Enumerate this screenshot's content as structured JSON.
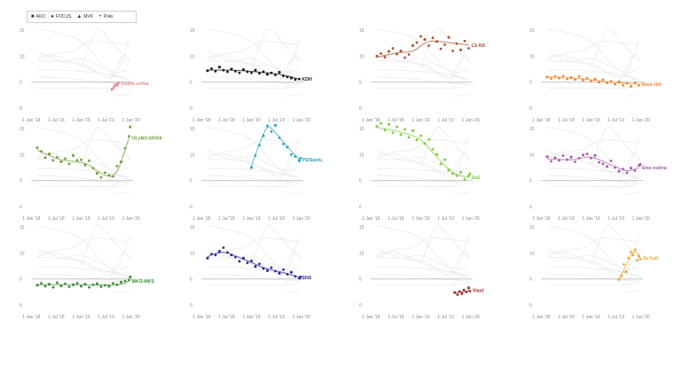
{
  "legend": {
    "items": [
      {
        "label": "AKO",
        "symbol": "■"
      },
      {
        "label": "FOCUS",
        "symbol": "●"
      },
      {
        "label": "MVK",
        "symbol": "▲"
      },
      {
        "label": "Polis",
        "symbol": "+"
      }
    ]
  },
  "chart_data": {
    "type": "scatter",
    "x_ticks": [
      "1 Jan '18",
      "1 Jul '18",
      "1 Jan '19",
      "1 Jul '19",
      "1 Jan '20"
    ],
    "y_ticks": [
      0,
      5,
      10,
      15
    ],
    "ylim": [
      -1,
      16
    ],
    "xlim": [
      0,
      26
    ],
    "threshold": 5,
    "panels": [
      {
        "label": "Dobrá voľba",
        "color": "#e08f93",
        "points": [
          [
            20.7,
            3.6
          ],
          [
            21.1,
            3.9
          ],
          [
            21.4,
            4.3
          ],
          [
            21.8,
            4.6
          ],
          [
            22.1,
            4.4
          ],
          [
            22.4,
            4.9
          ]
        ],
        "trend": [
          [
            20.7,
            3.6
          ],
          [
            22.4,
            4.8
          ]
        ]
      },
      {
        "label": "KDH",
        "color": "#1a1a1a",
        "points": [
          [
            2,
            7.2
          ],
          [
            3,
            7.6
          ],
          [
            4,
            7.1
          ],
          [
            5,
            7.9
          ],
          [
            6,
            7.3
          ],
          [
            7,
            7.0
          ],
          [
            8,
            7.5
          ],
          [
            9,
            7.1
          ],
          [
            10,
            6.8
          ],
          [
            11,
            7.4
          ],
          [
            12,
            7.0
          ],
          [
            13,
            6.8
          ],
          [
            14,
            7.3
          ],
          [
            15,
            6.7
          ],
          [
            16,
            7.0
          ],
          [
            17,
            6.5
          ],
          [
            18,
            6.8
          ],
          [
            19,
            6.4
          ],
          [
            20,
            6.9
          ],
          [
            21,
            6.2
          ],
          [
            22,
            6.0
          ],
          [
            23,
            5.8
          ],
          [
            24,
            5.5
          ],
          [
            25,
            5.6
          ]
        ],
        "trend": [
          [
            2,
            7.3
          ],
          [
            8,
            7.3
          ],
          [
            14,
            7.0
          ],
          [
            20,
            6.5
          ],
          [
            25,
            5.6
          ]
        ]
      },
      {
        "label": "ĽS-NS",
        "color": "#a8552a",
        "points": [
          [
            2,
            10.0
          ],
          [
            3,
            10.5
          ],
          [
            4,
            9.8
          ],
          [
            5,
            10.9
          ],
          [
            6,
            11.5
          ],
          [
            7,
            10.4
          ],
          [
            8,
            11.0
          ],
          [
            9,
            9.7
          ],
          [
            10,
            10.3
          ],
          [
            11,
            12.0
          ],
          [
            12,
            12.6
          ],
          [
            13,
            13.8
          ],
          [
            14,
            13.2
          ],
          [
            15,
            12.0
          ],
          [
            16,
            13.5
          ],
          [
            17,
            12.8
          ],
          [
            18,
            11.4
          ],
          [
            19,
            12.2
          ],
          [
            20,
            13.6
          ],
          [
            21,
            11.0
          ],
          [
            22,
            12.4
          ],
          [
            23,
            11.2
          ],
          [
            24,
            12.9
          ],
          [
            25,
            11.5
          ]
        ],
        "trend": [
          [
            2,
            9.8
          ],
          [
            7,
            10.6
          ],
          [
            11,
            11.0
          ],
          [
            15,
            12.8
          ],
          [
            20,
            12.6
          ],
          [
            25,
            12.1
          ]
        ]
      },
      {
        "label": "Most-Híd",
        "color": "#ef8a33",
        "points": [
          [
            2,
            6.0
          ],
          [
            3,
            5.7
          ],
          [
            4,
            6.1
          ],
          [
            5,
            5.8
          ],
          [
            6,
            6.2
          ],
          [
            7,
            5.6
          ],
          [
            8,
            5.9
          ],
          [
            9,
            5.5
          ],
          [
            10,
            6.1
          ],
          [
            11,
            5.4
          ],
          [
            12,
            5.8
          ],
          [
            13,
            5.2
          ],
          [
            14,
            5.6
          ],
          [
            15,
            5.0
          ],
          [
            16,
            5.5
          ],
          [
            17,
            4.9
          ],
          [
            18,
            5.2
          ],
          [
            19,
            4.6
          ],
          [
            20,
            5.1
          ],
          [
            21,
            4.4
          ],
          [
            22,
            4.8
          ],
          [
            23,
            4.2
          ],
          [
            24,
            4.9
          ],
          [
            25,
            4.4
          ]
        ],
        "trend": [
          [
            2,
            6.0
          ],
          [
            10,
            5.7
          ],
          [
            18,
            5.0
          ],
          [
            25,
            4.6
          ]
        ]
      },
      {
        "label": "OĽaNO-NOVA",
        "color": "#6fa03a",
        "points": [
          [
            2,
            11.3
          ],
          [
            3,
            10.6
          ],
          [
            4,
            9.4
          ],
          [
            5,
            10.1
          ],
          [
            6,
            8.9
          ],
          [
            7,
            9.5
          ],
          [
            8,
            8.6
          ],
          [
            9,
            9.2
          ],
          [
            10,
            8.2
          ],
          [
            11,
            9.8
          ],
          [
            12,
            8.9
          ],
          [
            13,
            9.0
          ],
          [
            14,
            8.0
          ],
          [
            15,
            8.8
          ],
          [
            16,
            7.4
          ],
          [
            17,
            6.4
          ],
          [
            18,
            5.6
          ],
          [
            19,
            6.5
          ],
          [
            20,
            6.0
          ],
          [
            21,
            5.8
          ],
          [
            22,
            7.8
          ],
          [
            23,
            8.6
          ],
          [
            24,
            11.2
          ],
          [
            25,
            13.5
          ],
          [
            25.3,
            15.3
          ]
        ],
        "trend": [
          [
            2,
            10.8
          ],
          [
            8,
            9.0
          ],
          [
            14,
            8.3
          ],
          [
            19,
            6.0
          ],
          [
            22,
            6.8
          ],
          [
            25,
            13.2
          ]
        ]
      },
      {
        "label": "PS/Spolu",
        "color": "#2aa3b6",
        "points": [
          [
            13,
            7.5
          ],
          [
            14,
            9.8
          ],
          [
            15,
            11.8
          ],
          [
            16,
            13.6
          ],
          [
            17,
            15.5
          ],
          [
            18,
            14.4
          ],
          [
            19,
            15.6
          ],
          [
            20,
            13.2
          ],
          [
            21,
            12.0
          ],
          [
            22,
            11.4
          ],
          [
            23,
            10.0
          ],
          [
            24,
            9.6
          ],
          [
            25,
            8.8
          ],
          [
            25.3,
            9.3
          ]
        ],
        "trend": [
          [
            13,
            7.8
          ],
          [
            15,
            12.0
          ],
          [
            17,
            15.2
          ],
          [
            19,
            14.2
          ],
          [
            22,
            11.5
          ],
          [
            25,
            9.0
          ]
        ]
      },
      {
        "label": "SaS",
        "color": "#7dcc3a",
        "points": [
          [
            2,
            15.4
          ],
          [
            3,
            16.0
          ],
          [
            4,
            14.7
          ],
          [
            5,
            15.8
          ],
          [
            6,
            14.2
          ],
          [
            7,
            15.3
          ],
          [
            8,
            13.8
          ],
          [
            9,
            14.8
          ],
          [
            10,
            13.3
          ],
          [
            11,
            14.6
          ],
          [
            12,
            12.8
          ],
          [
            13,
            13.6
          ],
          [
            14,
            12.1
          ],
          [
            15,
            12.9
          ],
          [
            16,
            11.0
          ],
          [
            17,
            10.0
          ],
          [
            18,
            8.2
          ],
          [
            19,
            9.0
          ],
          [
            20,
            7.0
          ],
          [
            21,
            6.4
          ],
          [
            22,
            5.9
          ],
          [
            23,
            6.6
          ],
          [
            24,
            5.2
          ],
          [
            25,
            5.9
          ],
          [
            25.3,
            6.3
          ]
        ],
        "trend": [
          [
            2,
            15.2
          ],
          [
            8,
            14.3
          ],
          [
            13,
            12.8
          ],
          [
            17,
            9.5
          ],
          [
            21,
            6.6
          ],
          [
            25,
            5.6
          ]
        ]
      },
      {
        "label": "Sme rodina",
        "color": "#a35aaa",
        "points": [
          [
            2,
            9.6
          ],
          [
            3,
            8.7
          ],
          [
            4,
            9.4
          ],
          [
            5,
            8.9
          ],
          [
            6,
            9.8
          ],
          [
            7,
            9.0
          ],
          [
            8,
            9.5
          ],
          [
            9,
            8.6
          ],
          [
            10,
            9.3
          ],
          [
            11,
            9.9
          ],
          [
            12,
            10.1
          ],
          [
            13,
            9.3
          ],
          [
            14,
            9.8
          ],
          [
            15,
            8.5
          ],
          [
            16,
            8.2
          ],
          [
            17,
            7.7
          ],
          [
            18,
            8.8
          ],
          [
            19,
            7.5
          ],
          [
            20,
            6.8
          ],
          [
            21,
            7.2
          ],
          [
            22,
            6.5
          ],
          [
            23,
            7.4
          ],
          [
            24,
            6.9
          ],
          [
            25,
            7.9
          ],
          [
            25.3,
            8.1
          ]
        ],
        "trend": [
          [
            2,
            9.2
          ],
          [
            8,
            9.0
          ],
          [
            13,
            9.5
          ],
          [
            18,
            8.0
          ],
          [
            22,
            6.9
          ],
          [
            25,
            7.5
          ]
        ]
      },
      {
        "label": "MKÖ-MKS",
        "color": "#3b8d3b",
        "points": [
          [
            2,
            3.8
          ],
          [
            3,
            4.2
          ],
          [
            4,
            3.6
          ],
          [
            5,
            4.0
          ],
          [
            6,
            3.4
          ],
          [
            7,
            4.3
          ],
          [
            8,
            3.7
          ],
          [
            9,
            4.1
          ],
          [
            10,
            3.5
          ],
          [
            11,
            3.9
          ],
          [
            12,
            4.2
          ],
          [
            13,
            3.6
          ],
          [
            14,
            4.0
          ],
          [
            15,
            3.4
          ],
          [
            16,
            3.9
          ],
          [
            17,
            4.1
          ],
          [
            18,
            3.5
          ],
          [
            19,
            3.8
          ],
          [
            20,
            3.6
          ],
          [
            21,
            4.2
          ],
          [
            22,
            3.9
          ],
          [
            23,
            4.4
          ],
          [
            24,
            4.6
          ],
          [
            25,
            4.8
          ],
          [
            25.3,
            5.4
          ]
        ],
        "trend": [
          [
            2,
            3.9
          ],
          [
            12,
            3.9
          ],
          [
            22,
            3.9
          ],
          [
            25,
            4.6
          ]
        ]
      },
      {
        "label": "SNS",
        "color": "#2b2b96",
        "points": [
          [
            2,
            9.0
          ],
          [
            3,
            9.8
          ],
          [
            4,
            9.6
          ],
          [
            5,
            10.3
          ],
          [
            6,
            11.0
          ],
          [
            7,
            10.1
          ],
          [
            8,
            9.6
          ],
          [
            9,
            9.2
          ],
          [
            10,
            8.4
          ],
          [
            11,
            9.0
          ],
          [
            12,
            8.1
          ],
          [
            13,
            8.5
          ],
          [
            14,
            7.4
          ],
          [
            15,
            7.9
          ],
          [
            16,
            7.0
          ],
          [
            17,
            6.6
          ],
          [
            18,
            7.2
          ],
          [
            19,
            6.5
          ],
          [
            20,
            6.1
          ],
          [
            21,
            6.8
          ],
          [
            22,
            5.9
          ],
          [
            23,
            6.3
          ],
          [
            24,
            5.5
          ],
          [
            25,
            5.1
          ],
          [
            25.3,
            5.4
          ]
        ],
        "trend": [
          [
            2,
            9.3
          ],
          [
            6,
            10.1
          ],
          [
            11,
            8.8
          ],
          [
            16,
            7.2
          ],
          [
            21,
            6.2
          ],
          [
            25,
            5.3
          ]
        ]
      },
      {
        "label": "Vlasť",
        "color": "#9e2a2a",
        "points": [
          [
            21.5,
            2.4
          ],
          [
            22.2,
            2.0
          ],
          [
            22.7,
            2.6
          ],
          [
            23.3,
            2.2
          ],
          [
            23.8,
            2.9
          ],
          [
            24.4,
            2.5
          ],
          [
            25,
            3.3
          ],
          [
            25.3,
            2.7
          ]
        ],
        "trend": [
          [
            21.5,
            2.3
          ],
          [
            25.3,
            2.8
          ]
        ]
      },
      {
        "label": "Za ľudí",
        "color": "#f0a830",
        "points": [
          [
            20,
            4.9
          ],
          [
            20.6,
            5.6
          ],
          [
            21.2,
            7.8
          ],
          [
            21.8,
            6.4
          ],
          [
            22.4,
            9.0
          ],
          [
            23,
            10.2
          ],
          [
            23.5,
            9.6
          ],
          [
            24,
            10.6
          ],
          [
            24.5,
            8.6
          ],
          [
            25,
            9.4
          ],
          [
            25.3,
            8.8
          ]
        ],
        "trend": [
          [
            20,
            5.0
          ],
          [
            21.5,
            7.2
          ],
          [
            23,
            9.6
          ],
          [
            24.2,
            10.2
          ],
          [
            25.3,
            9.0
          ]
        ]
      }
    ]
  }
}
